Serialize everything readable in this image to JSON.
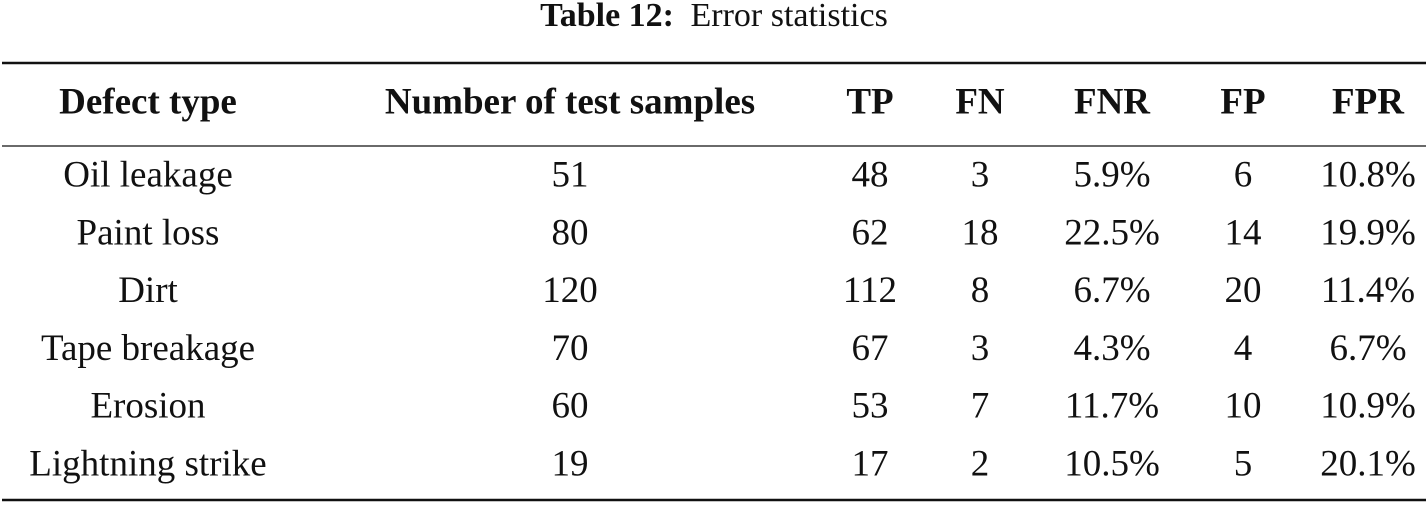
{
  "caption": {
    "label": "Table 12:",
    "title": "Error statistics"
  },
  "table": {
    "header": [
      "Defect type",
      "Number of test samples",
      "TP",
      "FN",
      "FNR",
      "FP",
      "FPR"
    ],
    "rows": [
      [
        "Oil leakage",
        "51",
        "48",
        "3",
        "5.9%",
        "6",
        "10.8%"
      ],
      [
        "Paint loss",
        "80",
        "62",
        "18",
        "22.5%",
        "14",
        "19.9%"
      ],
      [
        "Dirt",
        "120",
        "112",
        "8",
        "6.7%",
        "20",
        "11.4%"
      ],
      [
        "Tape breakage",
        "70",
        "67",
        "3",
        "4.3%",
        "4",
        "6.7%"
      ],
      [
        "Erosion",
        "60",
        "53",
        "7",
        "11.7%",
        "10",
        "10.9%"
      ],
      [
        "Lightning strike",
        "19",
        "17",
        "2",
        "10.5%",
        "5",
        "20.1%"
      ]
    ]
  }
}
